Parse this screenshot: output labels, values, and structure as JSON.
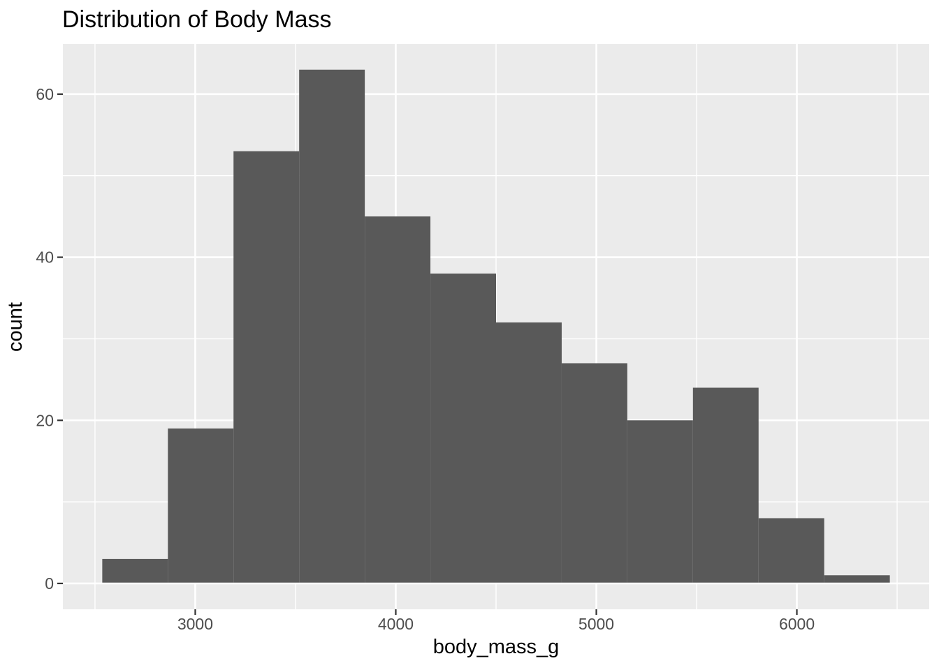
{
  "chart_data": {
    "type": "bar",
    "subtype": "histogram",
    "title": "Distribution of Body Mass",
    "xlabel": "body_mass_g",
    "ylabel": "count",
    "bin_edges": [
      2536.4,
      2863.6,
      3190.9,
      3518.2,
      3845.5,
      4172.7,
      4500.0,
      4827.3,
      5154.5,
      5481.8,
      5809.1,
      6136.4,
      6463.6
    ],
    "counts": [
      3,
      19,
      53,
      63,
      45,
      38,
      32,
      27,
      20,
      24,
      8,
      1
    ],
    "x_ticks": [
      3000,
      4000,
      5000,
      6000
    ],
    "x_minor_ticks": [
      2500,
      3500,
      4500,
      5500,
      6500
    ],
    "y_ticks": [
      0,
      20,
      40,
      60
    ],
    "y_minor_ticks": [
      10,
      30,
      50
    ],
    "xlim": [
      2340,
      6660
    ],
    "ylim": [
      -3.17,
      66.15
    ],
    "grid": "on",
    "legend": "none",
    "colors": {
      "bar": "#595959",
      "panel": "#EBEBEB",
      "grid": "#FFFFFF",
      "tick_label": "#4D4D4D",
      "tick_mark": "#333333",
      "text": "#000000",
      "background": "#FFFFFF"
    }
  }
}
